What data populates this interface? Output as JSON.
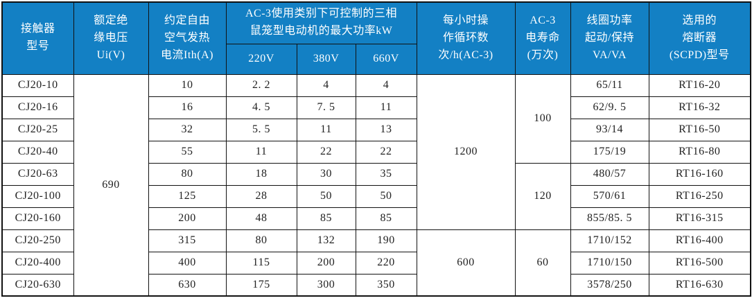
{
  "colors": {
    "header_bg": "#1380c4",
    "header_text": "#ffffff",
    "body_text": "#222222",
    "grid_line": "#111111"
  },
  "table": {
    "semantic_name": "contactor-spec-table",
    "header": {
      "row1": [
        {
          "name": "col-contactor-model",
          "text": "接触器\n型号",
          "rowspan": 2
        },
        {
          "name": "col-rated-insulation-voltage",
          "text": "额定绝\n缘电压\nUi(V)",
          "rowspan": 2
        },
        {
          "name": "col-conventional-free-air-thermal-current",
          "text": "约定自由\n空气发热\n电流Ith(A)",
          "rowspan": 2
        },
        {
          "name": "col-ac3-max-motor-power-group",
          "text": "AC-3使用类别下可控制的三相\n鼠笼型电动机的最大功率kW",
          "colspan": 3
        },
        {
          "name": "col-operating-cycles-per-hour",
          "text": "每小时操\n作循环数\n次/h(AC-3)",
          "rowspan": 2
        },
        {
          "name": "col-ac3-electrical-life",
          "text": "AC-3\n电寿命\n(万次)",
          "rowspan": 2
        },
        {
          "name": "col-coil-power-start-hold",
          "text": "线圈功率\n起动/保持\nVA/VA",
          "rowspan": 2
        },
        {
          "name": "col-selected-fuse-scpd-model",
          "text": "选用的\n熔断器\n(SCPD)型号",
          "rowspan": 2
        }
      ],
      "row2": [
        {
          "name": "col-220v",
          "text": "220V"
        },
        {
          "name": "col-380v",
          "text": "380V"
        },
        {
          "name": "col-660v",
          "text": "660V"
        }
      ]
    },
    "rows": [
      [
        "CJ20-10",
        {
          "text": "690",
          "rowspan": 10
        },
        "10",
        "2. 2",
        "4",
        "4",
        {
          "text": "1200",
          "rowspan": 7
        },
        {
          "text": "100",
          "rowspan": 4
        },
        "65/11",
        "RT16-20"
      ],
      [
        "CJ20-16",
        "16",
        "4. 5",
        "7. 5",
        "11",
        "62/9. 5",
        "RT16-32"
      ],
      [
        "CJ20-25",
        "32",
        "5. 5",
        "11",
        "13",
        "93/14",
        "RT16-50"
      ],
      [
        "CJ20-40",
        "55",
        "11",
        "22",
        "22",
        "175/19",
        "RT16-80"
      ],
      [
        "CJ20-63",
        "80",
        "18",
        "30",
        "35",
        {
          "text": "120",
          "rowspan": 3
        },
        "480/57",
        "RT16-160"
      ],
      [
        "CJ20-100",
        "125",
        "28",
        "50",
        "50",
        "570/61",
        "RT16-250"
      ],
      [
        "CJ20-160",
        "200",
        "48",
        "85",
        "85",
        "855/85. 5",
        "RT16-315"
      ],
      [
        "CJ20-250",
        "315",
        "80",
        "132",
        "190",
        {
          "text": "600",
          "rowspan": 3
        },
        {
          "text": "60",
          "rowspan": 3
        },
        "1710/152",
        "RT16-400"
      ],
      [
        "CJ20-400",
        "400",
        "115",
        "200",
        "220",
        "1710/150",
        "RT16-500"
      ],
      [
        "CJ20-630",
        "630",
        "175",
        "300",
        "350",
        "3578/250",
        "RT16-630"
      ]
    ]
  }
}
